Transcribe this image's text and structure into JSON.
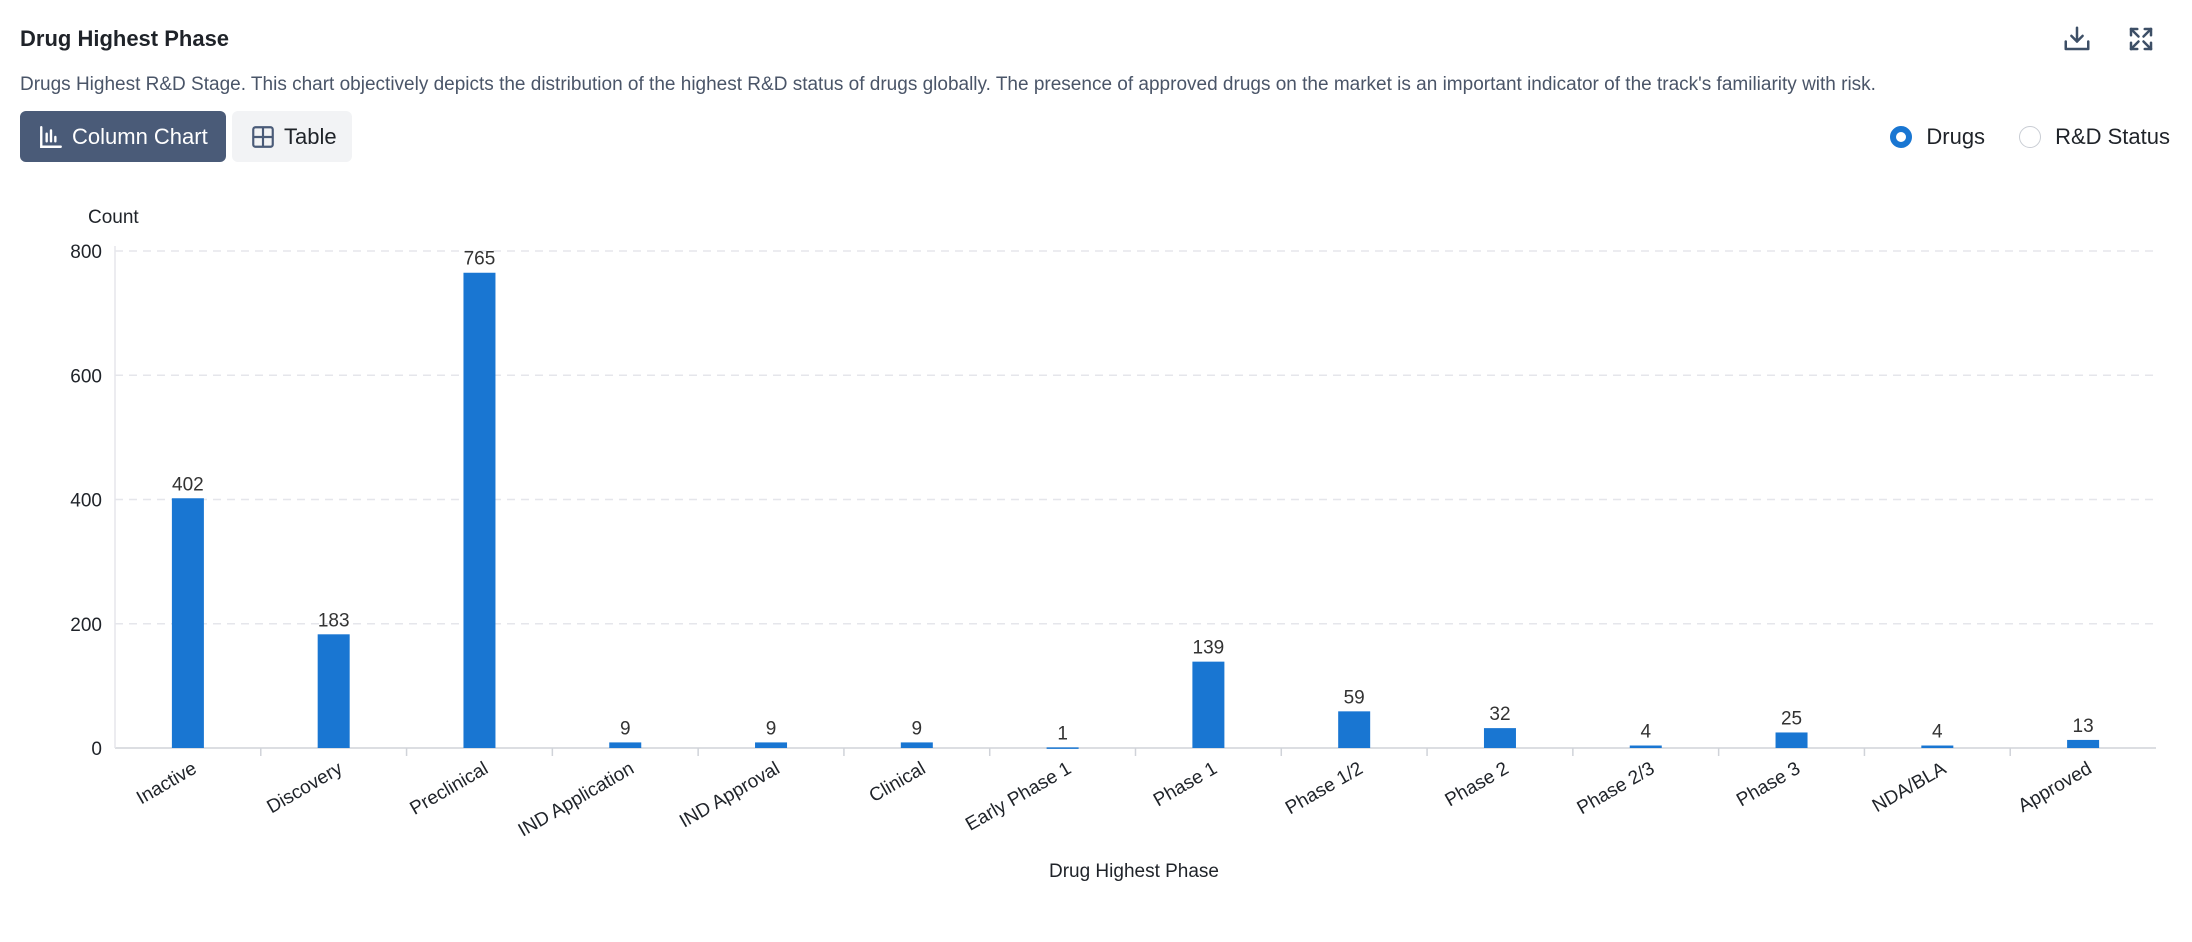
{
  "header": {
    "title": "Drug Highest Phase",
    "description": "Drugs Highest R&D Stage. This chart objectively depicts the distribution of the highest R&D status of drugs globally. The presence of approved drugs on the market is an important indicator of the track's familiarity with risk.",
    "download_icon": "download-icon",
    "fullscreen_icon": "fullscreen-icon"
  },
  "view_toggle": {
    "column_label": "Column Chart",
    "table_label": "Table",
    "active": "Column Chart"
  },
  "radio": {
    "options": [
      "Drugs",
      "R&D Status"
    ],
    "selected": "Drugs"
  },
  "colors": {
    "bar": "#1976d2",
    "active_button": "#4a5b78",
    "grid": "#e5e6eb"
  },
  "chart_data": {
    "type": "bar",
    "categories": [
      "Inactive",
      "Discovery",
      "Preclinical",
      "IND Application",
      "IND Approval",
      "Clinical",
      "Early Phase 1",
      "Phase 1",
      "Phase 1/2",
      "Phase 2",
      "Phase 2/3",
      "Phase 3",
      "NDA/BLA",
      "Approved"
    ],
    "values": [
      402,
      183,
      765,
      9,
      9,
      9,
      1,
      139,
      59,
      32,
      4,
      25,
      4,
      13
    ],
    "xlabel": "Drug Highest Phase",
    "ylabel": "Count",
    "ylim": [
      0,
      800
    ],
    "yticks": [
      0,
      200,
      400,
      600,
      800
    ],
    "grid": true,
    "data_labels": true
  }
}
